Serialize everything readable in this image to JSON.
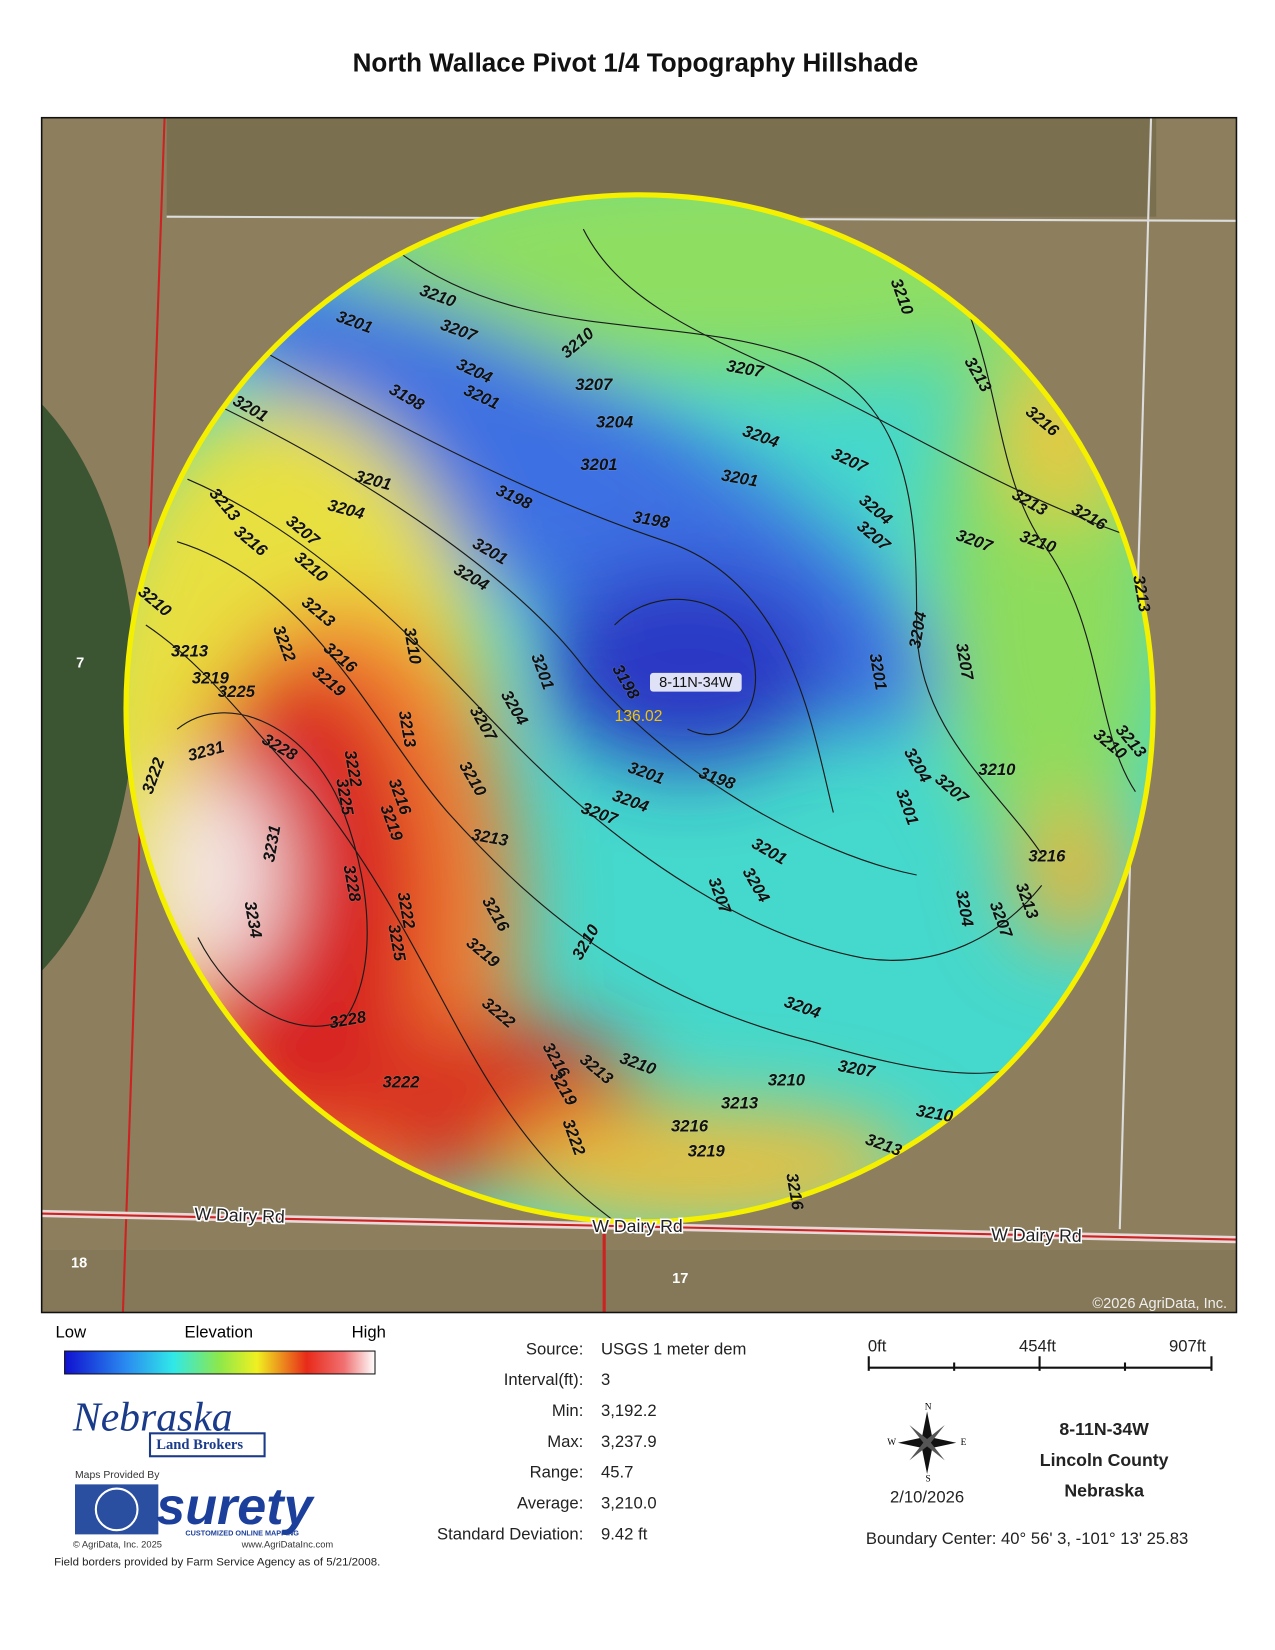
{
  "header": {
    "title": "North Wallace Pivot 1/4 Topography Hillshade"
  },
  "map": {
    "copyright": "©2026 AgriData, Inc.",
    "section_labels": [
      "7",
      "18",
      "17"
    ],
    "road_labels": [
      "W Dairy Rd",
      "W Dairy Rd",
      "W Dairy Rd"
    ],
    "center_label": "8-11N-34W",
    "center_value": "136.02",
    "contour_labels": [
      3210,
      3207,
      3201,
      3204,
      3201,
      3198,
      3201,
      3210,
      3207,
      3204,
      3207,
      3204,
      3201,
      3201,
      3207,
      3210,
      3213,
      3216,
      3198,
      3198,
      3201,
      3204,
      3207,
      3213,
      3216,
      3210,
      3213,
      3216,
      3219,
      3201,
      3204,
      3204,
      3207,
      3207,
      3213,
      3210,
      3216,
      3213,
      3210,
      3213,
      3219,
      3225,
      3222,
      3210,
      3201,
      3198,
      3204,
      3207,
      3213,
      3201,
      3204,
      3207,
      3210,
      3213,
      3231,
      3228,
      3222,
      3222,
      3225,
      3216,
      3219,
      3210,
      3201,
      3198,
      3204,
      3207,
      3210,
      3204,
      3201,
      3207,
      3213,
      3216,
      3201,
      3204,
      3207,
      3231,
      3228,
      3234,
      3222,
      3225,
      3204,
      3207,
      3213,
      3216,
      3219,
      3210,
      3222,
      3228,
      3204,
      3216,
      3213,
      3210,
      3219,
      3210,
      3207,
      3222,
      3213,
      3210,
      3216,
      3213,
      3219,
      3222,
      3216
    ]
  },
  "legend": {
    "low": "Low",
    "title": "Elevation",
    "high": "High"
  },
  "stats": {
    "rows": [
      [
        "Source:",
        "USGS 1 meter dem"
      ],
      [
        "Interval(ft):",
        "3"
      ],
      [
        "Min:",
        "3,192.2"
      ],
      [
        "Max:",
        "3,237.9"
      ],
      [
        "Range:",
        "45.7"
      ],
      [
        "Average:",
        "3,210.0"
      ],
      [
        "Standard Deviation:",
        "9.42 ft"
      ]
    ]
  },
  "scale": {
    "labels": [
      "0ft",
      "454ft",
      "907ft"
    ]
  },
  "compass": {
    "n": "N",
    "s": "S",
    "e": "E",
    "w": "W",
    "date": "2/10/2026"
  },
  "location": {
    "lines": [
      "8-11N-34W",
      "Lincoln County",
      "Nebraska"
    ],
    "boundary_center": "Boundary Center: 40° 56' 3,  -101° 13' 25.83"
  },
  "credits": {
    "broker_name": "Nebraska",
    "broker_sub": "Land Brokers",
    "maps_provided_by": "Maps Provided By",
    "surety": "surety",
    "surety_tag": "CUSTOMIZED ONLINE MAPPING",
    "agridata": "© AgriData, Inc. 2025",
    "url": "www.AgriDataInc.com",
    "field_borders": "Field borders provided by Farm Service Agency as of 5/21/2008."
  }
}
